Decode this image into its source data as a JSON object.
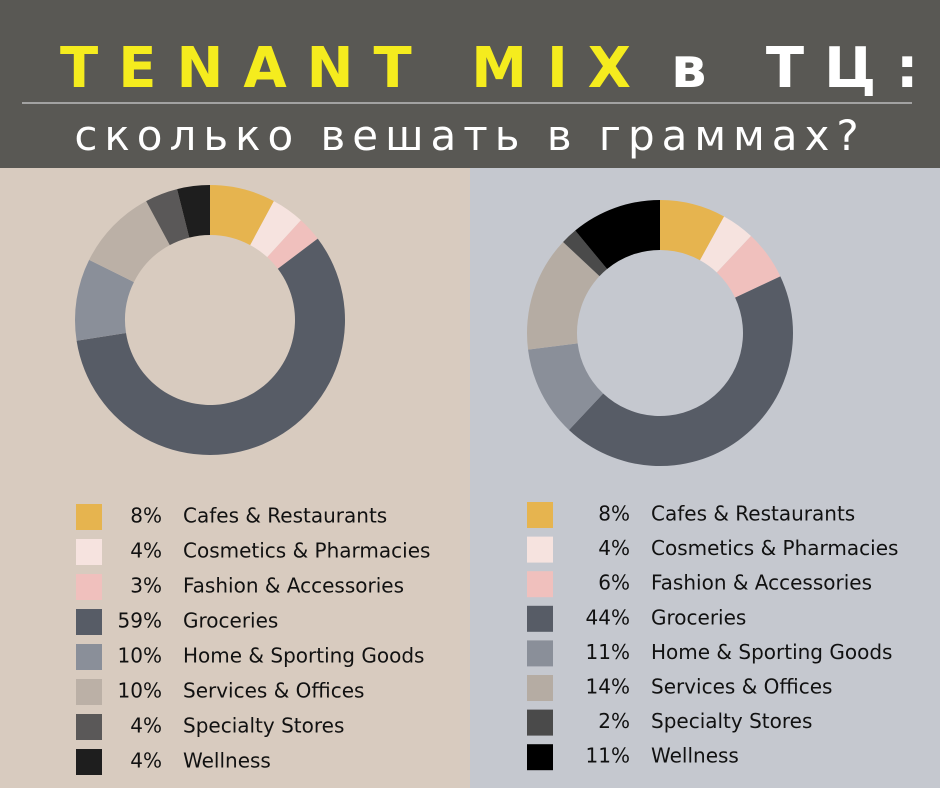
{
  "header": {
    "title_main": "TENANT MIX",
    "title_rest": "в ТЦ:",
    "subtitle": "сколько вешать в граммах?"
  },
  "chart_data": [
    {
      "type": "pie",
      "donut": true,
      "categories": [
        "Cafes & Restaurants",
        "Cosmetics & Pharmacies",
        "Fashion & Accessories",
        "Groceries",
        "Home & Sporting Goods",
        "Services & Offices",
        "Specialty Stores",
        "Wellness"
      ],
      "values": [
        8,
        4,
        3,
        59,
        10,
        10,
        4,
        4
      ],
      "value_labels": [
        "8%",
        "4%",
        "3%",
        "59%",
        "10%",
        "10%",
        "4%",
        "4%"
      ],
      "colors": [
        "#e6b44f",
        "#f6e3df",
        "#f0c0bd",
        "#575c66",
        "#8a8f99",
        "#bbb0a6",
        "#5a5858",
        "#1e1e1e"
      ]
    },
    {
      "type": "pie",
      "donut": true,
      "categories": [
        "Cafes & Restaurants",
        "Cosmetics & Pharmacies",
        "Fashion & Accessories",
        "Groceries",
        "Home & Sporting Goods",
        "Services & Offices",
        "Specialty Stores",
        "Wellness"
      ],
      "values": [
        8,
        4,
        6,
        44,
        11,
        14,
        2,
        11
      ],
      "value_labels": [
        "8%",
        "4%",
        "6%",
        "44%",
        "11%",
        "14%",
        "2%",
        "11%"
      ],
      "colors": [
        "#e6b44f",
        "#f6e3df",
        "#f0c0bd",
        "#575c66",
        "#8a8f99",
        "#b5aca3",
        "#4a4a4a",
        "#000000"
      ]
    }
  ]
}
